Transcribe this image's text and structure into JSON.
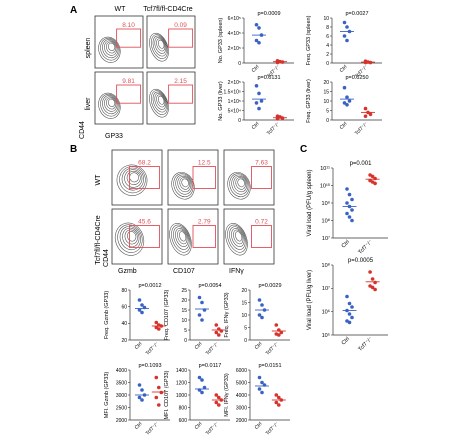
{
  "colors": {
    "wt": "#3a62c4",
    "ko": "#d8322c",
    "gate": "#e0505a",
    "contour": "#555555"
  },
  "panel_a": {
    "letter": "A",
    "col_wt": "WT",
    "col_ko": "Tcf7fl/fl-CD4Cre",
    "row_spleen": "spleen",
    "row_liver": "liver",
    "yaxis": "CD44",
    "xaxis": "GP33",
    "gates": [
      "8.10",
      "0.09",
      "9.81",
      "2.15"
    ],
    "stats": [
      {
        "p": "p=0.0009",
        "ylabel": "No. GP33 (spleen)",
        "ticks": [
          "6×10⁵",
          "4×10⁵",
          "2×10⁵",
          "0"
        ],
        "wt": [
          0.85,
          0.78,
          0.62,
          0.5,
          0.45
        ],
        "ko": [
          0.05,
          0.03,
          0.02,
          0.01
        ],
        "wt_mean": 0.62,
        "ko_mean": 0.03,
        "xt": [
          "Ctrl",
          "Tcf7⁻/⁻"
        ]
      },
      {
        "p": "p=0.0027",
        "ylabel": "Freq. GP33 (spleen)",
        "ticks": [
          "10",
          "8",
          "6",
          "4",
          "2",
          "0"
        ],
        "wt": [
          0.9,
          0.8,
          0.7,
          0.6,
          0.5
        ],
        "ko": [
          0.04,
          0.02,
          0.01,
          0.01
        ],
        "wt_mean": 0.7,
        "ko_mean": 0.02,
        "xt": [
          "Ctrl",
          "Tcf7⁻/⁻"
        ]
      },
      {
        "p": "p=0.0131",
        "ylabel": "No. GP33 (liver)",
        "ticks": [
          "2×10⁵",
          "1.5×10⁵",
          "1×10⁵",
          "5×10⁴",
          "0"
        ],
        "wt": [
          0.9,
          0.7,
          0.5,
          0.45,
          0.3
        ],
        "ko": [
          0.1,
          0.08,
          0.05,
          0.03
        ],
        "wt_mean": 0.55,
        "ko_mean": 0.06,
        "xt": [
          "Ctrl",
          "Tcf7⁻/⁻"
        ]
      },
      {
        "p": "p=0.0250",
        "ylabel": "Freq. GP33 (liver)",
        "ticks": [
          "20",
          "15",
          "10",
          "5",
          "0"
        ],
        "wt": [
          0.85,
          0.6,
          0.5,
          0.45,
          0.4
        ],
        "ko": [
          0.3,
          0.2,
          0.15,
          0.1
        ],
        "wt_mean": 0.55,
        "ko_mean": 0.2,
        "xt": [
          "Ctrl",
          "Tcf7⁻/⁻"
        ]
      }
    ]
  },
  "panel_b": {
    "letter": "B",
    "row_wt": "WT",
    "row_ko": "Tcf7fl/fl-CD4Cre",
    "yaxis": "CD44",
    "xaxes": [
      "Gzmb",
      "CD107",
      "IFNγ"
    ],
    "gates": [
      "68.2",
      "12.5",
      "7.63",
      "45.6",
      "2.79",
      "0.72"
    ],
    "freq": [
      {
        "p": "p=0.0012",
        "ylabel": "Freq. Gzmb (GP33)",
        "ticks": [
          "80",
          "60",
          "40",
          "20"
        ],
        "wt": [
          0.8,
          0.7,
          0.65,
          0.6,
          0.55
        ],
        "ko": [
          0.35,
          0.3,
          0.28,
          0.25,
          0.22
        ],
        "wt_mean": 0.63,
        "ko_mean": 0.28,
        "xt": [
          "Ctrl",
          "Tcf7⁻/⁻"
        ]
      },
      {
        "p": "p=0.0054",
        "ylabel": "Freq. CD107 (GP33)",
        "ticks": [
          "25",
          "20",
          "15",
          "10",
          "5",
          "0"
        ],
        "wt": [
          0.85,
          0.75,
          0.6,
          0.5,
          0.4
        ],
        "ko": [
          0.3,
          0.22,
          0.18,
          0.15,
          0.1
        ],
        "wt_mean": 0.62,
        "ko_mean": 0.2,
        "xt": [
          "Ctrl",
          "Tcf7⁻/⁻"
        ]
      },
      {
        "p": "p=0.0029",
        "ylabel": "Freq. IFNγ (GP33)",
        "ticks": [
          "20",
          "15",
          "10",
          "5",
          "0"
        ],
        "wt": [
          0.8,
          0.7,
          0.6,
          0.5,
          0.45
        ],
        "ko": [
          0.3,
          0.2,
          0.15,
          0.12,
          0.1
        ],
        "wt_mean": 0.6,
        "ko_mean": 0.18,
        "xt": [
          "Ctrl",
          "Tcf7⁻/⁻"
        ]
      }
    ],
    "mfi": [
      {
        "p": "p=0.1093",
        "ylabel": "MFI. Gzmb (GP33)",
        "ticks": [
          "4000",
          "3500",
          "3000",
          "2500",
          "2000"
        ],
        "wt": [
          0.7,
          0.6,
          0.5,
          0.45,
          0.4
        ],
        "ko": [
          0.85,
          0.65,
          0.55,
          0.45,
          0.3
        ],
        "wt_mean": 0.5,
        "ko_mean": 0.56,
        "xt": [
          "Ctrl",
          "Tcf7⁻/⁻"
        ]
      },
      {
        "p": "p=0.0117",
        "ylabel": "MFI. CD107 (GP33)",
        "ticks": [
          "1400",
          "1200",
          "1000",
          "800",
          "600"
        ],
        "wt": [
          0.85,
          0.8,
          0.65,
          0.6,
          0.55
        ],
        "ko": [
          0.5,
          0.45,
          0.4,
          0.35,
          0.3
        ],
        "wt_mean": 0.62,
        "ko_mean": 0.4,
        "xt": [
          "Ctrl",
          "Tcf7⁻/⁻"
        ]
      },
      {
        "p": "p=0.0151",
        "ylabel": "MFI. IFNγ (GP33)",
        "ticks": [
          "6000",
          "5000",
          "4000",
          "3000",
          "2000"
        ],
        "wt": [
          0.85,
          0.75,
          0.7,
          0.62,
          0.55
        ],
        "ko": [
          0.5,
          0.45,
          0.4,
          0.35,
          0.3
        ],
        "wt_mean": 0.68,
        "ko_mean": 0.4,
        "xt": [
          "Ctrl",
          "Tcf7⁻/⁻"
        ]
      }
    ]
  },
  "panel_c": {
    "letter": "C",
    "plots": [
      {
        "p": "p=0.001",
        "ylabel": "Viral load (PFU/g spleen)",
        "ticks": [
          "10¹¹",
          "10¹⁰",
          "10⁹",
          "10⁸",
          "10⁷"
        ],
        "wt": [
          0.7,
          0.62,
          0.55,
          0.5,
          0.45,
          0.4,
          0.35,
          0.3,
          0.25
        ],
        "ko": [
          0.9,
          0.88,
          0.85,
          0.82,
          0.8,
          0.78
        ],
        "wt_mean": 0.45,
        "ko_mean": 0.84,
        "xt": [
          "Ctrl",
          "Tcf7⁻/⁻"
        ]
      },
      {
        "p": "p=0.0005",
        "ylabel": "Viral load (PFU/g liver)",
        "ticks": [
          "10⁸",
          "10⁷",
          "10⁶",
          "10⁵"
        ],
        "wt": [
          0.55,
          0.45,
          0.4,
          0.35,
          0.3,
          0.25,
          0.2,
          0.18
        ],
        "ko": [
          0.9,
          0.8,
          0.75,
          0.7,
          0.68,
          0.65
        ],
        "wt_mean": 0.35,
        "ko_mean": 0.76,
        "xt": [
          "Ctrl",
          "Tcf7⁻/⁻"
        ]
      }
    ]
  }
}
